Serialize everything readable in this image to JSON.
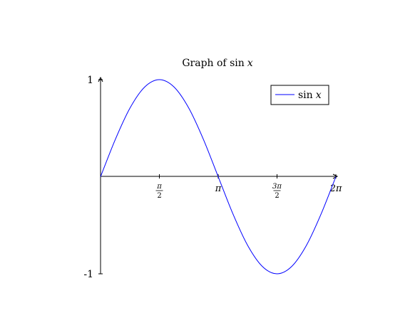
{
  "chart_data": {
    "type": "line",
    "title": "Graph of sin x",
    "title_parts": {
      "prefix": "Graph of ",
      "func": "sin",
      "var": "x"
    },
    "xlabel": "",
    "ylabel": "",
    "xlim": [
      0,
      6.283185307179586
    ],
    "ylim": [
      -1,
      1
    ],
    "grid": false,
    "legend_position": "top-right",
    "x_ticks": [
      {
        "value": 1.5707963267948966,
        "kind": "frac",
        "num": "π",
        "den": "2"
      },
      {
        "value": 3.141592653589793,
        "kind": "plain",
        "label": "π"
      },
      {
        "value": 4.71238898038469,
        "kind": "frac",
        "num": "3π",
        "den": "2"
      },
      {
        "value": 6.283185307179586,
        "kind": "plain",
        "label": "2π"
      }
    ],
    "y_ticks": [
      {
        "value": 1,
        "label": "1"
      },
      {
        "value": -1,
        "label": "-1"
      }
    ],
    "series": [
      {
        "name": "sin x",
        "name_parts": {
          "func": "sin",
          "var": "x"
        },
        "color": "#0000ff",
        "x": [
          0,
          0.3927,
          0.7854,
          1.1781,
          1.5708,
          1.9635,
          2.3562,
          2.7489,
          3.1416,
          3.5343,
          3.927,
          4.3197,
          4.7124,
          5.1051,
          5.4978,
          5.8905,
          6.2832
        ],
        "y": [
          0,
          0.3827,
          0.7071,
          0.9239,
          1,
          0.9239,
          0.7071,
          0.3827,
          0,
          -0.3827,
          -0.7071,
          -0.9239,
          -1,
          -0.9239,
          -0.7071,
          -0.3827,
          0
        ]
      }
    ]
  }
}
